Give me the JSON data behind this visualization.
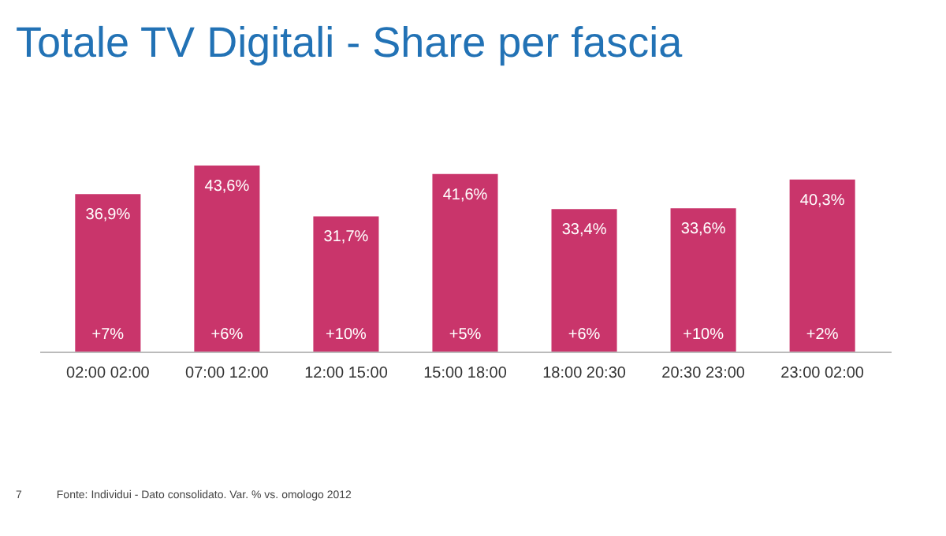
{
  "chart_data": {
    "type": "bar",
    "title": "Totale TV Digitali - Share per fascia",
    "categories": [
      "02:00 02:00",
      "07:00 12:00",
      "12:00 15:00",
      "15:00 18:00",
      "18:00 20:30",
      "20:30 23:00",
      "23:00 02:00"
    ],
    "values": [
      36.9,
      43.6,
      31.7,
      41.6,
      33.4,
      33.6,
      40.3
    ],
    "value_labels": [
      "36,9%",
      "43,6%",
      "31,7%",
      "41,6%",
      "33,4%",
      "33,6%",
      "40,3%"
    ],
    "color": "#c9356b",
    "annotations": [
      "+7%",
      "+6%",
      "+10%",
      "+5%",
      "+6%",
      "+10%",
      "+2%",
      "7",
      "Fonte: Individui - Dato consolidato. Var. % vs. omologo 2012"
    ]
  }
}
